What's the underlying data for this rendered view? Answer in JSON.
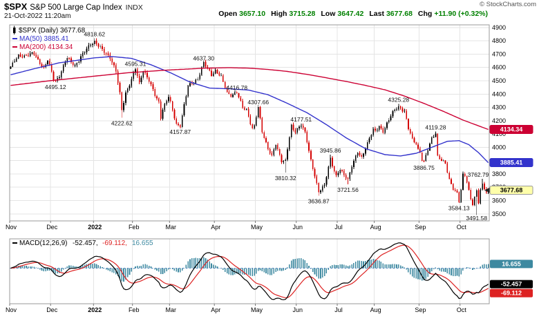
{
  "header": {
    "symbol": "$SPX",
    "name": "S&P 500 Large Cap Index",
    "exchange": "INDX",
    "datetime": "21-Oct-2022 11:20am",
    "copyright": "© StockCharts.com",
    "quote": [
      {
        "label": "Open",
        "value": "3657.10"
      },
      {
        "label": "High",
        "value": "3715.28"
      },
      {
        "label": "Low",
        "value": "3647.42"
      },
      {
        "label": "Last",
        "value": "3677.68"
      },
      {
        "label": "Chg",
        "value": "+11.90 (+0.32%)"
      }
    ]
  },
  "colors": {
    "up_candle": "#000000",
    "down_candle": "#d40000",
    "ma50": "#3333cc",
    "ma200": "#cc0033",
    "macd_line": "#000000",
    "signal_line": "#dd2222",
    "histogram": "#3d89a0",
    "zero_line": "#4a7ebb",
    "grid": "#e4e4e4",
    "axis_border": "#999999",
    "tick": "#777777",
    "last_price_bg": "#ffffaa",
    "annotation": "#111111",
    "quote_green": "#008000"
  },
  "chart_data": {
    "type": "candlestick",
    "title": "$SPX (Daily)",
    "legend": {
      "main": "$SPX (Daily) 3677.68",
      "ma50": "MA(50) 3885.41",
      "ma200": "MA(200) 4134.34"
    },
    "x_axis": {
      "months": [
        "Nov",
        "Dec",
        "2022",
        "Feb",
        "Mar",
        "Apr",
        "May",
        "Jun",
        "Jul",
        "Aug",
        "Sep",
        "Oct"
      ],
      "bold_label": "2022",
      "month_start_days": [
        0,
        21,
        43,
        63,
        82,
        105,
        126,
        147,
        168,
        187,
        210,
        231
      ],
      "total_days": 246
    },
    "y_axis": {
      "min": 3447,
      "max": 4920,
      "ticks": [
        4900,
        4800,
        4700,
        4600,
        4500,
        4400,
        4300,
        4200,
        4100,
        4000,
        3900,
        3800,
        3700,
        3600,
        3500
      ]
    },
    "price_path_est": [
      [
        0,
        4605
      ],
      [
        4,
        4685
      ],
      [
        12,
        4700
      ],
      [
        17,
        4594
      ],
      [
        19,
        4655
      ],
      [
        22,
        4513
      ],
      [
        23,
        4500
      ],
      [
        25,
        4540
      ],
      [
        29,
        4670
      ],
      [
        33,
        4615
      ],
      [
        41,
        4780
      ],
      [
        43,
        4796
      ],
      [
        47,
        4730
      ],
      [
        51,
        4680
      ],
      [
        54,
        4570
      ],
      [
        56,
        4400
      ],
      [
        57,
        4280
      ],
      [
        59,
        4410
      ],
      [
        62,
        4510
      ],
      [
        63,
        4546
      ],
      [
        64,
        4589
      ],
      [
        66,
        4480
      ],
      [
        68,
        4585
      ],
      [
        71,
        4500
      ],
      [
        74,
        4390
      ],
      [
        76,
        4340
      ],
      [
        77,
        4228
      ],
      [
        78,
        4288
      ],
      [
        81,
        4380
      ],
      [
        82,
        4330
      ],
      [
        85,
        4175
      ],
      [
        87,
        4165
      ],
      [
        91,
        4460
      ],
      [
        96,
        4515
      ],
      [
        99,
        4630
      ],
      [
        103,
        4550
      ],
      [
        105,
        4575
      ],
      [
        108,
        4525
      ],
      [
        111,
        4412
      ],
      [
        113,
        4392
      ],
      [
        116,
        4408
      ],
      [
        119,
        4300
      ],
      [
        121,
        4287
      ],
      [
        123,
        4183
      ],
      [
        124,
        4135
      ],
      [
        125,
        4155
      ],
      [
        127,
        4300
      ],
      [
        129,
        4123
      ],
      [
        132,
        3990
      ],
      [
        134,
        3930
      ],
      [
        136,
        4024
      ],
      [
        139,
        3900
      ],
      [
        141,
        3901
      ],
      [
        144,
        4158
      ],
      [
        145,
        4132
      ],
      [
        146,
        4121
      ],
      [
        149,
        4176
      ],
      [
        151,
        4109
      ],
      [
        154,
        3900
      ],
      [
        156,
        3790
      ],
      [
        158,
        3667
      ],
      [
        161,
        3712
      ],
      [
        164,
        3920
      ],
      [
        166,
        3822
      ],
      [
        167,
        3785
      ],
      [
        169,
        3832
      ],
      [
        171,
        3790
      ],
      [
        173,
        3760
      ],
      [
        175,
        3863
      ],
      [
        178,
        3960
      ],
      [
        180,
        3918
      ],
      [
        182,
        3999
      ],
      [
        184,
        4072
      ],
      [
        186,
        4130
      ],
      [
        187,
        4118
      ],
      [
        189,
        4155
      ],
      [
        191,
        4122
      ],
      [
        194,
        4210
      ],
      [
        197,
        4280
      ],
      [
        199,
        4305
      ],
      [
        202,
        4274
      ],
      [
        204,
        4140
      ],
      [
        206,
        4057
      ],
      [
        208,
        4030
      ],
      [
        209,
        3986
      ],
      [
        210,
        3966
      ],
      [
        211,
        3908
      ],
      [
        212,
        3890
      ],
      [
        214,
        3979
      ],
      [
        216,
        4067
      ],
      [
        218,
        4110
      ],
      [
        219,
        3932
      ],
      [
        221,
        3901
      ],
      [
        223,
        3873
      ],
      [
        225,
        3757
      ],
      [
        227,
        3693
      ],
      [
        229,
        3655
      ],
      [
        230,
        3590
      ],
      [
        231,
        3678
      ],
      [
        232,
        3790
      ],
      [
        233,
        3783
      ],
      [
        234,
        3744
      ],
      [
        236,
        3612
      ],
      [
        237,
        3577
      ],
      [
        239,
        3669
      ],
      [
        240,
        3583
      ],
      [
        241,
        3678
      ],
      [
        242,
        3720
      ],
      [
        243,
        3695
      ],
      [
        244,
        3666
      ],
      [
        245,
        3678
      ]
    ],
    "ma50_path_est": [
      [
        0,
        4545
      ],
      [
        12,
        4590
      ],
      [
        25,
        4635
      ],
      [
        43,
        4672
      ],
      [
        52,
        4682
      ],
      [
        62,
        4668
      ],
      [
        72,
        4620
      ],
      [
        82,
        4560
      ],
      [
        92,
        4490
      ],
      [
        102,
        4445
      ],
      [
        112,
        4440
      ],
      [
        122,
        4430
      ],
      [
        132,
        4395
      ],
      [
        142,
        4330
      ],
      [
        152,
        4260
      ],
      [
        162,
        4170
      ],
      [
        172,
        4072
      ],
      [
        182,
        3990
      ],
      [
        192,
        3945
      ],
      [
        200,
        3935
      ],
      [
        208,
        3955
      ],
      [
        216,
        4000
      ],
      [
        224,
        4045
      ],
      [
        230,
        4050
      ],
      [
        235,
        4020
      ],
      [
        240,
        3960
      ],
      [
        245,
        3885
      ]
    ],
    "ma200_path_est": [
      [
        0,
        4465
      ],
      [
        20,
        4500
      ],
      [
        40,
        4530
      ],
      [
        60,
        4560
      ],
      [
        80,
        4580
      ],
      [
        100,
        4595
      ],
      [
        112,
        4598
      ],
      [
        122,
        4595
      ],
      [
        132,
        4585
      ],
      [
        142,
        4570
      ],
      [
        152,
        4548
      ],
      [
        162,
        4522
      ],
      [
        172,
        4495
      ],
      [
        182,
        4465
      ],
      [
        192,
        4432
      ],
      [
        202,
        4385
      ],
      [
        212,
        4330
      ],
      [
        222,
        4270
      ],
      [
        232,
        4205
      ],
      [
        245,
        4134
      ]
    ],
    "annotations": [
      {
        "day": 23,
        "value": 4495.12,
        "text": "4495.12",
        "side": "low"
      },
      {
        "day": 43,
        "value": 4818.62,
        "text": "4818.62",
        "side": "high"
      },
      {
        "day": 57,
        "value": 4222.62,
        "text": "4222.62",
        "side": "low"
      },
      {
        "day": 64,
        "value": 4595.31,
        "text": "4595.31",
        "side": "high"
      },
      {
        "day": 87,
        "value": 4157.87,
        "text": "4157.87",
        "side": "low"
      },
      {
        "day": 99,
        "value": 4637.3,
        "text": "4637.30",
        "side": "high"
      },
      {
        "day": 116,
        "value": 4416.78,
        "text": "4416.78",
        "side": "high"
      },
      {
        "day": 127,
        "value": 4307.66,
        "text": "4307.66",
        "side": "high"
      },
      {
        "day": 141,
        "value": 3810.32,
        "text": "3810.32",
        "side": "low"
      },
      {
        "day": 149,
        "value": 4177.51,
        "text": "4177.51",
        "side": "high"
      },
      {
        "day": 158,
        "value": 3636.87,
        "text": "3636.87",
        "side": "low"
      },
      {
        "day": 164,
        "value": 3945.86,
        "text": "3945.86",
        "side": "high"
      },
      {
        "day": 173,
        "value": 3721.56,
        "text": "3721.56",
        "side": "low"
      },
      {
        "day": 199,
        "value": 4325.28,
        "text": "4325.28",
        "side": "high"
      },
      {
        "day": 212,
        "value": 3886.75,
        "text": "3886.75",
        "side": "low"
      },
      {
        "day": 218,
        "value": 4119.28,
        "text": "4119.28",
        "side": "high"
      },
      {
        "day": 230,
        "value": 3584.13,
        "text": "3584.13",
        "side": "low"
      },
      {
        "day": 239,
        "value": 3491.58,
        "text": "3491.58",
        "side": "low"
      },
      {
        "day": 242,
        "value": 3762.79,
        "text": "3762.79",
        "side": "high"
      }
    ],
    "right_labels": {
      "ma200": {
        "text": "4134.34",
        "price": 4134.34
      },
      "ma50": {
        "text": "3885.41",
        "price": 3885.41
      },
      "last": {
        "text": "3677.68",
        "price": 3677.68
      }
    },
    "macd": {
      "type": "macd",
      "legend": "MACD(12,26,9)",
      "params": [
        12,
        26,
        9
      ],
      "macd_value": "-52.457",
      "signal_value": "-69.112",
      "hist_value": "16.655"
    }
  }
}
